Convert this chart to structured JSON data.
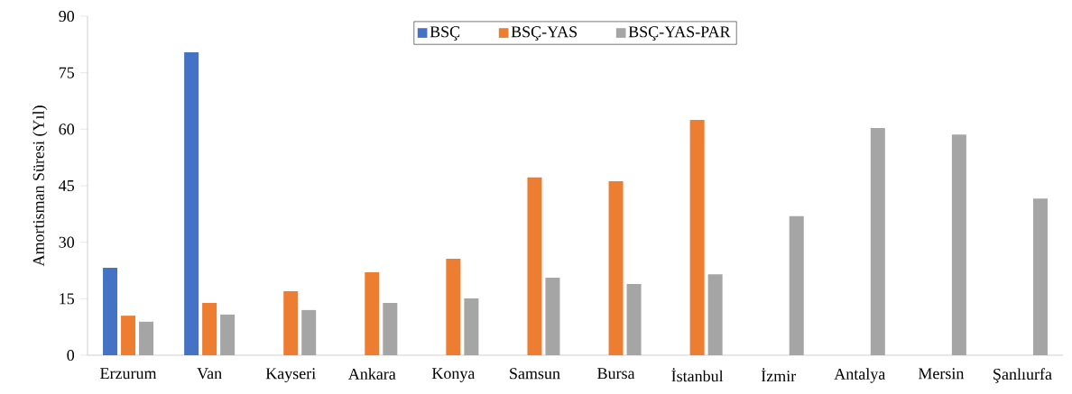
{
  "chart_data": {
    "type": "bar",
    "ylabel": "Amortisman Süresi (Yıl)",
    "categories": [
      "Erzurum",
      "Van",
      "Kayseri",
      "Ankara",
      "Konya",
      "Samsun",
      "Bursa",
      "İstanbul",
      "İzmir",
      "Antalya",
      "Mersin",
      "Şanlıurfa"
    ],
    "series": [
      {
        "name": "BSÇ",
        "color": "#4472c4",
        "values": [
          23.2,
          80.4,
          null,
          null,
          null,
          null,
          null,
          null,
          null,
          null,
          null,
          null
        ]
      },
      {
        "name": "BSÇ-YAS",
        "color": "#ed7d31",
        "values": [
          10.5,
          13.9,
          17.0,
          22.0,
          25.6,
          47.2,
          46.2,
          62.5,
          null,
          null,
          null,
          null
        ]
      },
      {
        "name": "BSÇ-YAS-PAR",
        "color": "#a5a5a5",
        "values": [
          8.9,
          10.8,
          12.0,
          13.9,
          15.1,
          20.6,
          18.9,
          21.5,
          36.9,
          60.3,
          58.6,
          41.6
        ]
      }
    ],
    "ylim": [
      0,
      90
    ],
    "yticks": [
      0,
      15,
      30,
      45,
      60,
      75,
      90
    ],
    "legend": "top"
  }
}
